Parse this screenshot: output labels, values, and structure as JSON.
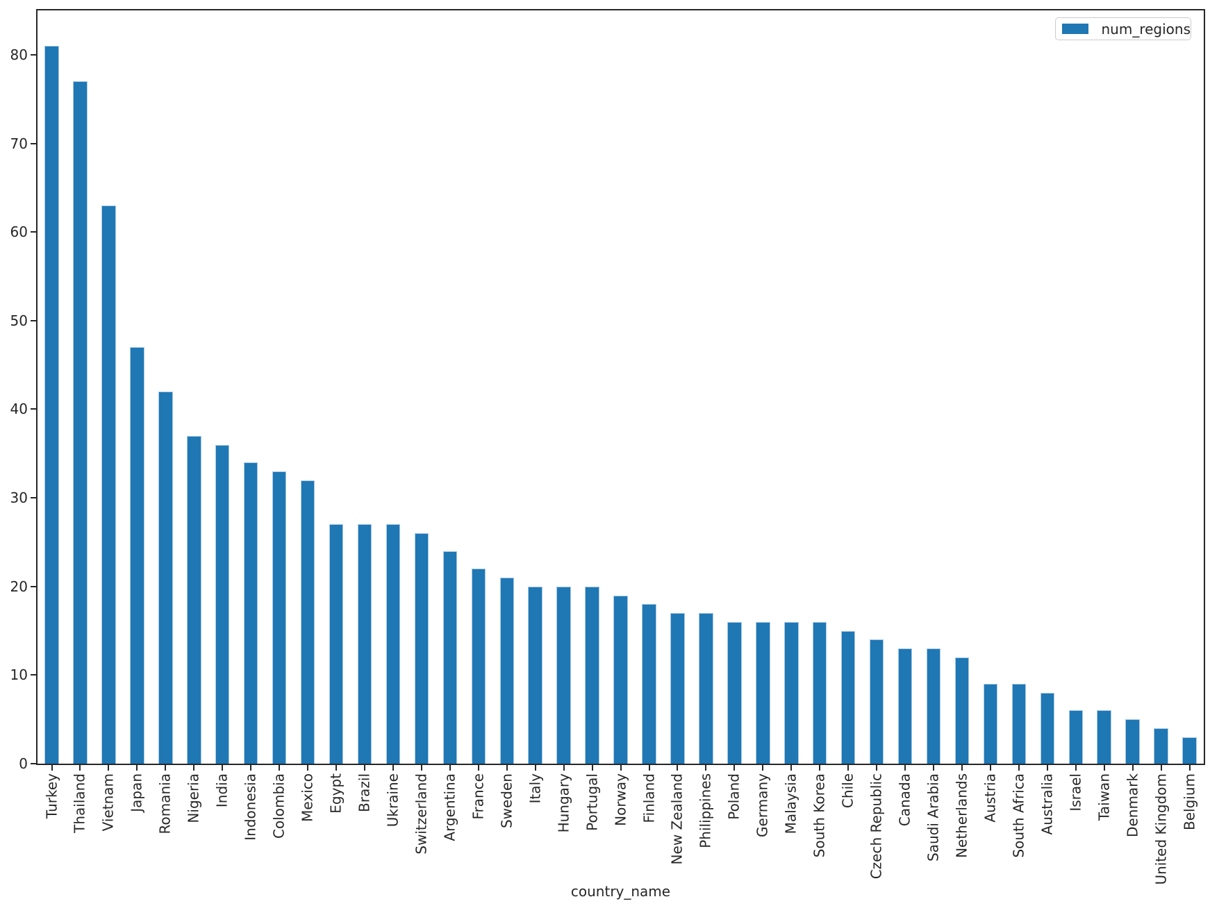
{
  "chart_data": {
    "type": "bar",
    "title": "",
    "xlabel": "country_name",
    "ylabel": "",
    "grid": false,
    "legend_position": "upper right",
    "bar_color": "#1f77b4",
    "bar_edge_color": "#a9c9e8",
    "axis_color": "#262626",
    "ylim": [
      0,
      85
    ],
    "yticks": [
      0,
      10,
      20,
      30,
      40,
      50,
      60,
      70,
      80
    ],
    "categories": [
      "Turkey",
      "Thailand",
      "Vietnam",
      "Japan",
      "Romania",
      "Nigeria",
      "India",
      "Indonesia",
      "Colombia",
      "Mexico",
      "Egypt",
      "Brazil",
      "Ukraine",
      "Switzerland",
      "Argentina",
      "France",
      "Sweden",
      "Italy",
      "Hungary",
      "Portugal",
      "Norway",
      "Finland",
      "New Zealand",
      "Philippines",
      "Poland",
      "Germany",
      "Malaysia",
      "South Korea",
      "Chile",
      "Czech Republic",
      "Canada",
      "Saudi Arabia",
      "Netherlands",
      "Austria",
      "South Africa",
      "Australia",
      "Israel",
      "Taiwan",
      "Denmark",
      "United Kingdom",
      "Belgium"
    ],
    "series": [
      {
        "name": "num_regions",
        "values": [
          81,
          77,
          63,
          47,
          42,
          37,
          36,
          34,
          33,
          32,
          27,
          27,
          27,
          26,
          24,
          22,
          21,
          20,
          20,
          20,
          19,
          18,
          17,
          17,
          16,
          16,
          16,
          16,
          15,
          14,
          13,
          13,
          12,
          9,
          9,
          8,
          6,
          6,
          5,
          4,
          3
        ]
      }
    ]
  }
}
